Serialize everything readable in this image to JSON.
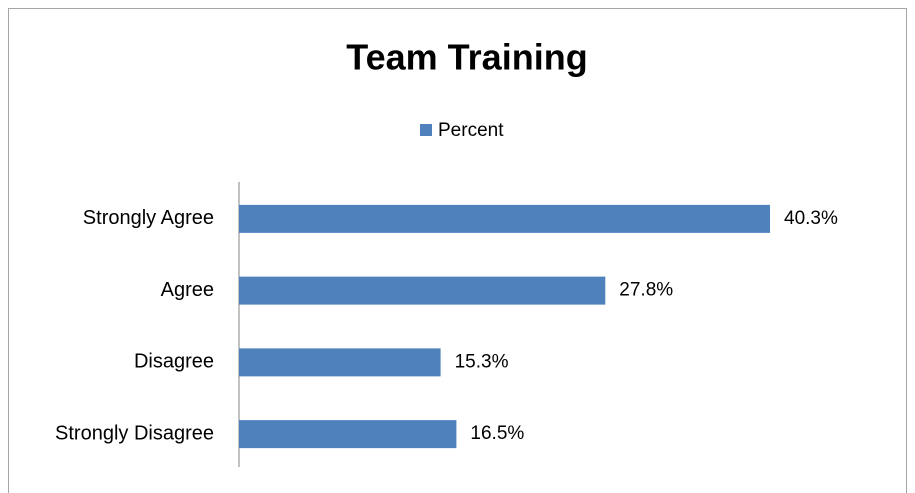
{
  "chart_data": {
    "type": "bar",
    "orientation": "horizontal",
    "title": "Team Training",
    "categories": [
      "Strongly Agree",
      "Agree",
      "Disagree",
      "Strongly Disagree"
    ],
    "series": [
      {
        "name": "Percent",
        "color": "#4f81bd",
        "values": [
          40.3,
          27.8,
          15.3,
          16.5
        ],
        "value_labels": [
          "40.3%",
          "27.8%",
          "15.3%",
          "16.5%"
        ]
      }
    ],
    "legend": "top"
  }
}
